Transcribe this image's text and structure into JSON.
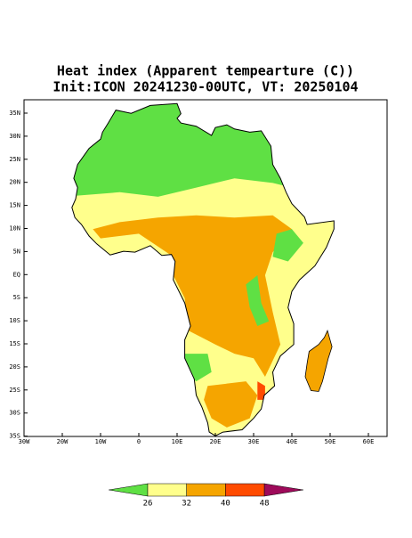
{
  "map": {
    "title": "Heat index (Apparent tempearture (C))",
    "subtitle": "Init:ICON 20241230-00UTC, VT: 20250104",
    "lat_labels": [
      "35N",
      "30N",
      "25N",
      "20N",
      "15N",
      "10N",
      "5N",
      "EQ",
      "5S",
      "10S",
      "15S",
      "20S",
      "25S",
      "30S",
      "35S"
    ],
    "lon_labels": [
      "30W",
      "20W",
      "10W",
      "0",
      "10E",
      "20E",
      "30E",
      "40E",
      "50E",
      "60E"
    ],
    "colorbar": {
      "levels": [
        26,
        32,
        40,
        48
      ],
      "colors": [
        "#5fe044",
        "#ffff8c",
        "#f5a500",
        "#ff4b00",
        "#9e0a5a"
      ]
    }
  }
}
